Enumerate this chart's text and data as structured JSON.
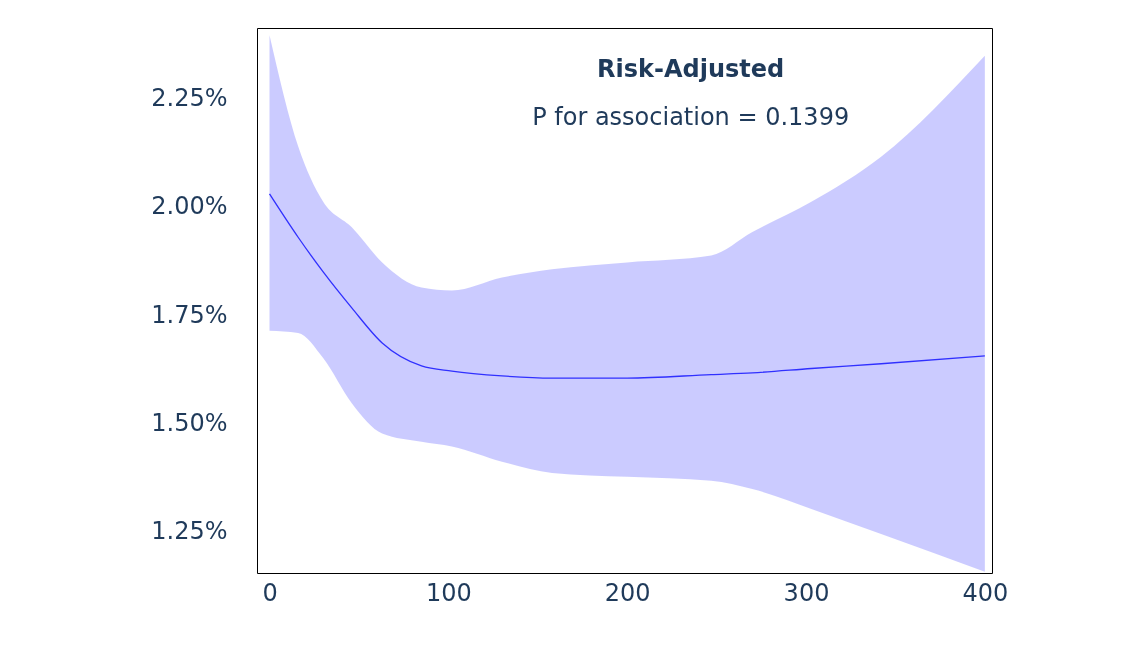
{
  "chart_data": {
    "type": "line",
    "title": "Risk-Adjusted",
    "subtitle": "P for association = 0.1399",
    "xlim": [
      -7,
      404
    ],
    "xticks": [
      0,
      100,
      200,
      300,
      400
    ],
    "ylim": [
      1.155,
      2.413
    ],
    "yticks": [
      {
        "value": 1.25,
        "label": "1.25%"
      },
      {
        "value": 1.5,
        "label": "1.50%"
      },
      {
        "value": 1.75,
        "label": "1.75%"
      },
      {
        "value": 2.0,
        "label": "2.00%"
      },
      {
        "value": 2.25,
        "label": "2.25%"
      }
    ],
    "grid": false,
    "marker": "none",
    "line_style": "solid",
    "series": [
      {
        "color": "#3030ff",
        "x": [
          0,
          16,
          30,
          46,
          63,
          85,
          102,
          130,
          158,
          200,
          247,
          270,
          303,
          342,
          400
        ],
        "values": [
          2.03,
          1.93,
          1.85,
          1.767,
          1.686,
          1.633,
          1.621,
          1.61,
          1.605,
          1.605,
          1.613,
          1.617,
          1.627,
          1.638,
          1.656
        ],
        "lower": [
          1.714,
          1.709,
          1.651,
          1.547,
          1.477,
          1.458,
          1.447,
          1.412,
          1.386,
          1.377,
          1.368,
          1.349,
          1.303,
          1.245,
          1.158
        ],
        "upper": [
          2.396,
          2.14,
          2.012,
          1.953,
          1.872,
          1.814,
          1.807,
          1.837,
          1.856,
          1.872,
          1.888,
          1.942,
          2.012,
          2.116,
          2.349
        ]
      }
    ]
  }
}
